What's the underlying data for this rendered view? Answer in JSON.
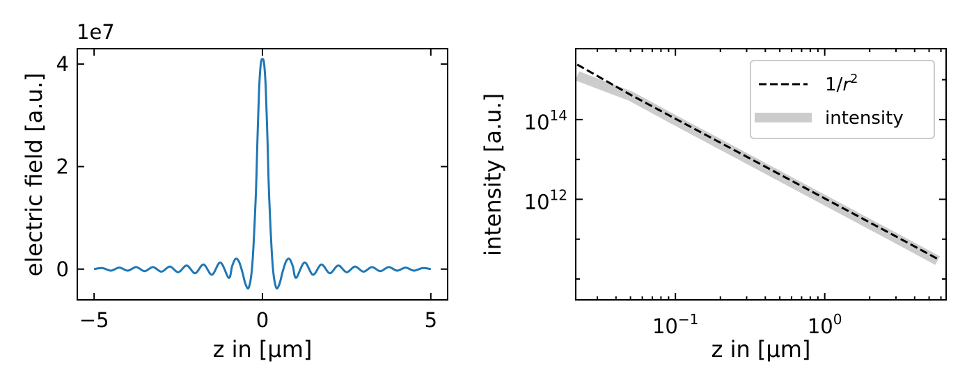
{
  "chart_data": [
    {
      "type": "line",
      "xlabel": "z in [µm]",
      "ylabel": "electric field [a.u.]",
      "offset_text": "1e7",
      "xlim": [
        -5.5,
        5.5
      ],
      "ylim": [
        -6000000,
        43000000
      ],
      "xticks": [
        -5,
        0,
        5
      ],
      "xtick_labels": [
        "−5",
        "0",
        "5"
      ],
      "yticks": [
        0,
        20000000,
        40000000
      ],
      "ytick_labels": [
        "0",
        "2",
        "4"
      ],
      "color": "#1f77b4",
      "series": [
        {
          "x": [
            -5.0,
            -4.75,
            -4.5,
            -4.25,
            -4.0,
            -3.75,
            -3.5,
            -3.25,
            -3.0,
            -2.75,
            -2.5,
            -2.25,
            -2.0,
            -1.75,
            -1.5,
            -1.25,
            -1.0,
            -0.9,
            -0.8,
            -0.7,
            -0.6,
            -0.5,
            -0.4,
            -0.3,
            -0.2,
            -0.15,
            -0.1,
            -0.05,
            0.0,
            0.05,
            0.1,
            0.15,
            0.2,
            0.3,
            0.4,
            0.5,
            0.6,
            0.7,
            0.8,
            0.9,
            1.0,
            1.25,
            1.5,
            1.75,
            2.0,
            2.25,
            2.5,
            2.75,
            3.0,
            3.25,
            3.5,
            3.75,
            4.0,
            4.25,
            4.5,
            4.75,
            5.0
          ],
          "y": [
            0,
            200000,
            -300000,
            300000,
            -300000,
            400000,
            -400000,
            400000,
            -500000,
            500000,
            -600000,
            700000,
            -800000,
            900000,
            -1100000,
            1300000,
            -1700000,
            600000,
            2000000,
            1500000,
            -500000,
            -3000000,
            -3500000,
            1000000,
            14000000,
            25000000,
            35000000,
            40000000,
            41000000,
            40000000,
            35000000,
            25000000,
            14000000,
            1000000,
            -3500000,
            -3000000,
            -500000,
            1500000,
            2000000,
            600000,
            -1700000,
            1300000,
            -1100000,
            900000,
            -800000,
            700000,
            -600000,
            500000,
            -500000,
            400000,
            -400000,
            400000,
            -300000,
            300000,
            -300000,
            200000,
            0
          ]
        }
      ]
    },
    {
      "type": "line",
      "xlabel": "z in [µm]",
      "ylabel": "intensity [a.u.]",
      "xscale": "log",
      "yscale": "log",
      "xlim": [
        0.0215,
        6.5
      ],
      "ylim": [
        3000000000,
        6000000000000000
      ],
      "xtick_labels": [
        {
          "value": 0.1,
          "base": "10",
          "exp": "−1"
        },
        {
          "value": 1,
          "base": "10",
          "exp": "0"
        }
      ],
      "ytick_labels": [
        {
          "value": 1000000000000,
          "base": "10",
          "exp": "12"
        },
        {
          "value": 100000000000000,
          "base": "10",
          "exp": "14"
        }
      ],
      "legend": {
        "position": "top-right",
        "entries": [
          {
            "text_prefix": "1/",
            "text_var": "r",
            "text_sup": "2"
          },
          {
            "text": "intensity"
          }
        ]
      },
      "series": [
        {
          "name": "1/r²",
          "style": "dashed",
          "color": "#000000",
          "x": [
            0.022,
            0.05,
            0.1,
            0.3,
            1.0,
            3.0,
            5.7
          ],
          "y": [
            2400000000000000,
            420000000000000,
            105000000000000,
            11700000000000,
            1050000000000,
            117000000000,
            32000000000
          ]
        },
        {
          "name": "intensity",
          "style": "band",
          "color": "#cccccc",
          "x": [
            0.022,
            0.03,
            0.05,
            0.1,
            0.3,
            1.0,
            3.0,
            5.7
          ],
          "y": [
            1250000000000000,
            800000000000000,
            390000000000000,
            95000000000000,
            10600000000000,
            950000000000,
            106000000000,
            29000000000
          ]
        }
      ]
    }
  ]
}
